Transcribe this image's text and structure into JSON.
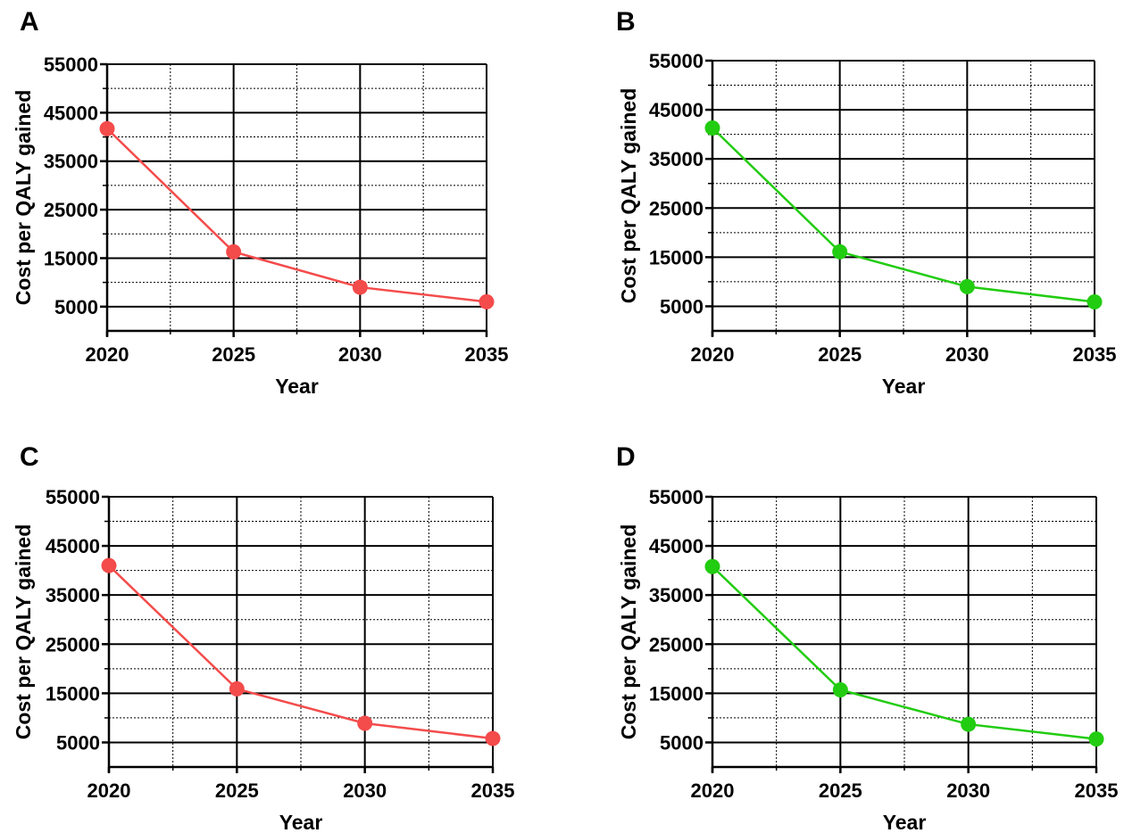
{
  "chart_data": [
    {
      "panel": "A",
      "type": "line",
      "xlabel": "Year",
      "ylabel": "Cost per QALY gained",
      "x": [
        2020,
        2025,
        2030,
        2035
      ],
      "xticks": [
        "2020",
        "2025",
        "2030",
        "2035"
      ],
      "yticks": [
        "5000",
        "15000",
        "25000",
        "35000",
        "45000",
        "55000"
      ],
      "xlim": [
        2020,
        2035
      ],
      "ylim": [
        0,
        55000
      ],
      "grid": true,
      "series": [
        {
          "values": [
            41700,
            16300,
            9000,
            6000
          ],
          "color": "#f44b4b"
        }
      ]
    },
    {
      "panel": "B",
      "type": "line",
      "xlabel": "Year",
      "ylabel": "Cost per QALY gained",
      "x": [
        2020,
        2025,
        2030,
        2035
      ],
      "xticks": [
        "2020",
        "2025",
        "2030",
        "2035"
      ],
      "yticks": [
        "5000",
        "15000",
        "25000",
        "35000",
        "45000",
        "55000"
      ],
      "xlim": [
        2020,
        2035
      ],
      "ylim": [
        0,
        55000
      ],
      "grid": true,
      "series": [
        {
          "values": [
            41300,
            16100,
            9000,
            5900
          ],
          "color": "#22cc11"
        }
      ]
    },
    {
      "panel": "C",
      "type": "line",
      "xlabel": "Year",
      "ylabel": "Cost per QALY gained",
      "x": [
        2020,
        2025,
        2030,
        2035
      ],
      "xticks": [
        "2020",
        "2025",
        "2030",
        "2035"
      ],
      "yticks": [
        "5000",
        "15000",
        "25000",
        "35000",
        "45000",
        "55000"
      ],
      "xlim": [
        2020,
        2035
      ],
      "ylim": [
        0,
        55000
      ],
      "grid": true,
      "series": [
        {
          "values": [
            41000,
            15900,
            8900,
            5800
          ],
          "color": "#f44b4b"
        }
      ]
    },
    {
      "panel": "D",
      "type": "line",
      "xlabel": "Year",
      "ylabel": "Cost per QALY gained",
      "x": [
        2020,
        2025,
        2030,
        2035
      ],
      "xticks": [
        "2020",
        "2025",
        "2030",
        "2035"
      ],
      "yticks": [
        "5000",
        "15000",
        "25000",
        "35000",
        "45000",
        "55000"
      ],
      "xlim": [
        2020,
        2035
      ],
      "ylim": [
        0,
        55000
      ],
      "grid": true,
      "series": [
        {
          "values": [
            40800,
            15700,
            8700,
            5700
          ],
          "color": "#22cc11"
        }
      ]
    }
  ]
}
